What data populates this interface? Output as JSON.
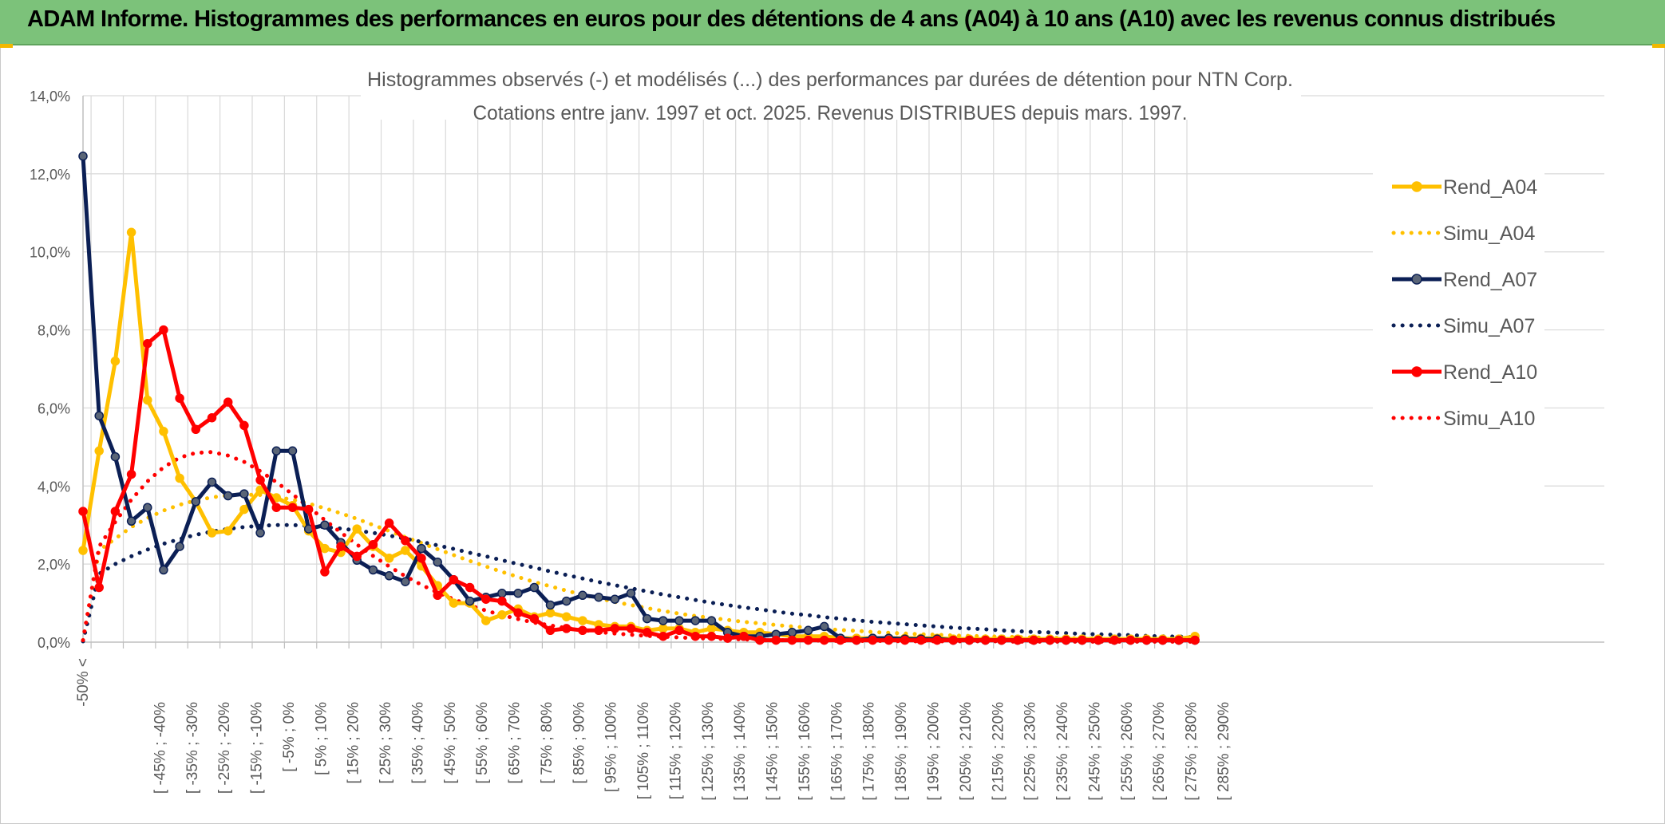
{
  "header": {
    "title": "ADAM Informe. Histogrammes des performances en euros pour des détentions de 4 ans (A04) à 10 ans (A10) avec les revenus connus distribués"
  },
  "chart_data": {
    "type": "line",
    "title": "Histogrammes observés (-) et modélisés (...) des performances par durées de détention pour NTN Corp.",
    "subtitle": "Cotations entre janv. 1997 et oct. 2025. Revenus DISTRIBUES depuis mars. 1997.",
    "xlabel": "",
    "ylabel": "",
    "ylim": [
      0,
      0.14
    ],
    "yticks": [
      "0,0%",
      "2,0%",
      "4,0%",
      "6,0%",
      "8,0%",
      "10,0%",
      "12,0%",
      "14,0%"
    ],
    "grid": true,
    "legend_position": "right",
    "category_labels": [
      "-50% <",
      "[ -45% ; -40%",
      "[ -35% ; -30%",
      "[ -25% ; -20%",
      "[ -15% ; -10%",
      "[ -5% ; 0%",
      "[ 5% ; 10%",
      "[ 15% ; 20%",
      "[ 25% ; 30%",
      "[ 35% ; 40%",
      "[ 45% ; 50%",
      "[ 55% ; 60%",
      "[ 65% ; 70%",
      "[ 75% ; 80%",
      "[ 85% ; 90%",
      "[ 95% ; 100%",
      "[ 105% ; 110%",
      "[ 115% ; 120%",
      "[ 125% ; 130%",
      "[ 135% ; 140%",
      "[ 145% ; 150%",
      "[ 155% ; 160%",
      "[ 165% ; 170%",
      "[ 175% ; 180%",
      "[ 185% ; 190%",
      "[ 195% ; 200%",
      "[ 205% ; 210%",
      "[ 215% ; 220%",
      "[ 225% ; 230%",
      "[ 235% ; 240%",
      "[ 245% ; 250%",
      "[ 255% ; 260%",
      "[ 265% ; 270%",
      "[ 275% ; 280%",
      "[ 285% ; 290%"
    ],
    "num_points": 70,
    "series": [
      {
        "name": "Rend_A04",
        "style": "solid",
        "color": "#ffc000",
        "values": [
          0.0235,
          0.049,
          0.072,
          0.105,
          0.062,
          0.054,
          0.042,
          0.036,
          0.028,
          0.0285,
          0.034,
          0.039,
          0.037,
          0.035,
          0.0285,
          0.024,
          0.023,
          0.029,
          0.0245,
          0.0215,
          0.0235,
          0.0195,
          0.0145,
          0.01,
          0.01,
          0.0055,
          0.007,
          0.0085,
          0.0065,
          0.0075,
          0.0065,
          0.0055,
          0.0045,
          0.004,
          0.004,
          0.003,
          0.0035,
          0.0035,
          0.0025,
          0.0035,
          0.003,
          0.0025,
          0.0025,
          0.002,
          0.0015,
          0.0015,
          0.0015,
          0.001,
          0.001,
          0.001,
          0.001,
          0.001,
          0.001,
          0.001,
          0.0008,
          0.0008,
          0.0008,
          0.0008,
          0.0008,
          0.0008,
          0.0008,
          0.0008,
          0.0008,
          0.0008,
          0.0008,
          0.0008,
          0.0008,
          0.0008,
          0.0008,
          0.0015
        ]
      },
      {
        "name": "Simu_A04",
        "style": "dotted",
        "color": "#ffc000",
        "values": [
          0.0005,
          0.0235,
          0.0265,
          0.0295,
          0.0318,
          0.0337,
          0.0352,
          0.0363,
          0.0371,
          0.0376,
          0.0378,
          0.0377,
          0.0372,
          0.0365,
          0.0355,
          0.0343,
          0.033,
          0.0316,
          0.03,
          0.0285,
          0.0269,
          0.0254,
          0.0238,
          0.0223,
          0.0208,
          0.0194,
          0.018,
          0.0167,
          0.0154,
          0.0143,
          0.0132,
          0.0121,
          0.0112,
          0.0103,
          0.0095,
          0.0087,
          0.008,
          0.0073,
          0.0067,
          0.0062,
          0.0057,
          0.0052,
          0.0048,
          0.0044,
          0.004,
          0.0037,
          0.0034,
          0.0031,
          0.0029,
          0.0026,
          0.0024,
          0.0022,
          0.002,
          0.0019,
          0.0017,
          0.0016,
          0.0015,
          0.0014,
          0.0013,
          0.0012,
          0.0011,
          0.001,
          0.001,
          0.0009,
          0.0008,
          0.0008,
          0.0007,
          0.0007,
          0.0006,
          0.0006
        ]
      },
      {
        "name": "Rend_A07",
        "style": "solid",
        "color": "#0b1f55",
        "values": [
          0.1245,
          0.058,
          0.0475,
          0.031,
          0.0345,
          0.0185,
          0.0245,
          0.036,
          0.041,
          0.0375,
          0.038,
          0.028,
          0.049,
          0.049,
          0.029,
          0.03,
          0.0255,
          0.021,
          0.0185,
          0.017,
          0.0155,
          0.024,
          0.0205,
          0.016,
          0.0105,
          0.0115,
          0.0125,
          0.0125,
          0.014,
          0.0095,
          0.0105,
          0.012,
          0.0115,
          0.011,
          0.0125,
          0.006,
          0.0055,
          0.0055,
          0.0055,
          0.0055,
          0.0025,
          0.0015,
          0.0015,
          0.002,
          0.0025,
          0.003,
          0.004,
          0.001,
          0.0005,
          0.001,
          0.001,
          0.0008,
          0.0008,
          0.0008,
          0.0005,
          0.0005,
          0.0005,
          0.0005,
          0.0005,
          0.0005,
          0.0005,
          0.0005,
          0.0005,
          0.0005,
          0.0005,
          0.0005,
          0.0005,
          0.0005,
          0.0005,
          0.0005
        ]
      },
      {
        "name": "Simu_A07",
        "style": "dotted",
        "color": "#0b1f55",
        "values": [
          0.0002,
          0.0175,
          0.02,
          0.022,
          0.0237,
          0.0252,
          0.0264,
          0.0275,
          0.0283,
          0.029,
          0.0295,
          0.0298,
          0.03,
          0.03,
          0.0298,
          0.0295,
          0.0291,
          0.0286,
          0.028,
          0.0273,
          0.0265,
          0.0257,
          0.0248,
          0.0239,
          0.0229,
          0.022,
          0.021,
          0.02,
          0.0191,
          0.0181,
          0.0172,
          0.0163,
          0.0154,
          0.0146,
          0.0138,
          0.013,
          0.0122,
          0.0115,
          0.0108,
          0.0101,
          0.0095,
          0.0089,
          0.0084,
          0.0078,
          0.0073,
          0.0069,
          0.0064,
          0.006,
          0.0056,
          0.0052,
          0.0049,
          0.0046,
          0.0043,
          0.004,
          0.0037,
          0.0035,
          0.0033,
          0.003,
          0.0028,
          0.0026,
          0.0025,
          0.0023,
          0.0021,
          0.002,
          0.0019,
          0.0018,
          0.0016,
          0.0015,
          0.0014,
          0.0013
        ]
      },
      {
        "name": "Rend_A10",
        "style": "solid",
        "color": "#ff0000",
        "values": [
          0.0335,
          0.014,
          0.0335,
          0.043,
          0.0765,
          0.08,
          0.0625,
          0.0545,
          0.0575,
          0.0615,
          0.0555,
          0.0415,
          0.0345,
          0.0345,
          0.034,
          0.018,
          0.0245,
          0.022,
          0.025,
          0.0305,
          0.026,
          0.0215,
          0.012,
          0.016,
          0.014,
          0.011,
          0.0105,
          0.0075,
          0.006,
          0.003,
          0.0035,
          0.003,
          0.003,
          0.0035,
          0.0035,
          0.0025,
          0.0015,
          0.003,
          0.0015,
          0.0015,
          0.001,
          0.0015,
          0.0005,
          0.0005,
          0.0005,
          0.0005,
          0.0005,
          0.0005,
          0.0005,
          0.0005,
          0.0005,
          0.0005,
          0.0005,
          0.0005,
          0.0005,
          0.0005,
          0.0005,
          0.0005,
          0.0005,
          0.0005,
          0.0005,
          0.0005,
          0.0005,
          0.0005,
          0.0005,
          0.0005,
          0.0005,
          0.0005,
          0.0005,
          0.0005
        ]
      },
      {
        "name": "Simu_A10",
        "style": "dotted",
        "color": "#ff0000",
        "values": [
          0.0005,
          0.0245,
          0.0308,
          0.0365,
          0.0412,
          0.0448,
          0.0473,
          0.0485,
          0.0487,
          0.0478,
          0.0462,
          0.0438,
          0.041,
          0.0379,
          0.0346,
          0.0313,
          0.0281,
          0.025,
          0.0221,
          0.0194,
          0.0169,
          0.0147,
          0.0127,
          0.011,
          0.0094,
          0.0081,
          0.0069,
          0.0059,
          0.005,
          0.0043,
          0.0036,
          0.0031,
          0.0026,
          0.0022,
          0.0019,
          0.0016,
          0.0014,
          0.0012,
          0.001,
          0.0009,
          0.0008,
          0.0007,
          0.0006,
          0.0005,
          0.0005,
          0.0004,
          0.0004,
          0.0003,
          0.0003,
          0.0003,
          0.0003,
          0.0002,
          0.0002,
          0.0002,
          0.0002,
          0.0002,
          0.0002,
          0.0002,
          0.0001,
          0.0001,
          0.0001,
          0.0001,
          0.0001,
          0.0001,
          0.0001,
          0.0001,
          0.0001,
          0.0001,
          0.0001,
          0.0001
        ]
      }
    ]
  }
}
